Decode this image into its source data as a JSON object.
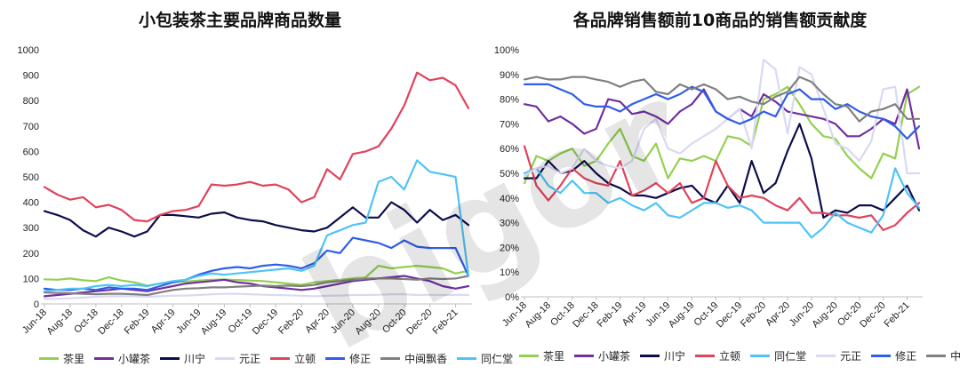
{
  "colors": {
    "茶里": "#92d050",
    "小罐茶": "#7030a0",
    "川宁": "#0d0d4d",
    "元正": "#d9d9f3",
    "立顿": "#e0435c",
    "修正": "#2f5de8",
    "中闽飘香": "#808080",
    "同仁堂": "#4fc3f7"
  },
  "watermark_text": "bigone",
  "chart_data": [
    {
      "type": "line",
      "title": "小包装茶主要品牌商品数量",
      "xlabel": "",
      "ylabel": "",
      "ylim": [
        0,
        1000
      ],
      "yticks": [
        "0",
        "100",
        "200",
        "300",
        "400",
        "500",
        "600",
        "700",
        "800",
        "900",
        "1000"
      ],
      "x_tick_labels": [
        "Jun-18",
        "Aug-18",
        "Oct-18",
        "Dec-18",
        "Feb-19",
        "Apr-19",
        "Jun-19",
        "Aug-19",
        "Oct-19",
        "Dec-19",
        "Feb-20",
        "Apr-20",
        "Jun-20",
        "Aug-20",
        "Oct-20",
        "Dec-20",
        "Feb-21"
      ],
      "x": [
        "Jun-18",
        "Jul-18",
        "Aug-18",
        "Sep-18",
        "Oct-18",
        "Nov-18",
        "Dec-18",
        "Jan-19",
        "Feb-19",
        "Mar-19",
        "Apr-19",
        "May-19",
        "Jun-19",
        "Jul-19",
        "Aug-19",
        "Sep-19",
        "Oct-19",
        "Nov-19",
        "Dec-19",
        "Jan-20",
        "Feb-20",
        "Mar-20",
        "Apr-20",
        "May-20",
        "Jun-20",
        "Jul-20",
        "Aug-20",
        "Sep-20",
        "Oct-20",
        "Nov-20",
        "Dec-20",
        "Jan-21",
        "Feb-21",
        "Mar-21"
      ],
      "legend": [
        "茶里",
        "小罐茶",
        "川宁",
        "元正",
        "立顿",
        "修正",
        "中闽飘香",
        "同仁堂"
      ],
      "series": [
        {
          "name": "茶里",
          "values": [
            97,
            95,
            100,
            93,
            90,
            105,
            92,
            85,
            72,
            80,
            85,
            88,
            92,
            95,
            96,
            94,
            92,
            90,
            85,
            80,
            75,
            85,
            90,
            95,
            100,
            105,
            150,
            140,
            145,
            150,
            145,
            140,
            120,
            130
          ]
        },
        {
          "name": "小罐茶",
          "values": [
            30,
            35,
            40,
            45,
            50,
            55,
            60,
            55,
            50,
            60,
            70,
            80,
            85,
            90,
            95,
            85,
            80,
            70,
            65,
            60,
            55,
            60,
            70,
            80,
            90,
            95,
            100,
            105,
            110,
            100,
            90,
            70,
            60,
            70
          ]
        },
        {
          "name": "川宁",
          "values": [
            365,
            350,
            330,
            290,
            265,
            300,
            285,
            265,
            285,
            350,
            350,
            345,
            340,
            355,
            360,
            340,
            330,
            325,
            310,
            300,
            290,
            285,
            300,
            340,
            380,
            340,
            340,
            400,
            370,
            320,
            370,
            330,
            350,
            310
          ]
        },
        {
          "name": "元正",
          "values": [
            20,
            20,
            22,
            25,
            28,
            30,
            30,
            30,
            28,
            30,
            32,
            33,
            35,
            38,
            40,
            40,
            38,
            36,
            35,
            34,
            32,
            30,
            32,
            33,
            35,
            35,
            36,
            38,
            38,
            35,
            36,
            35,
            36,
            35
          ]
        },
        {
          "name": "立顿",
          "values": [
            460,
            430,
            410,
            420,
            380,
            390,
            370,
            330,
            325,
            350,
            365,
            370,
            385,
            470,
            465,
            470,
            480,
            465,
            470,
            450,
            400,
            420,
            530,
            490,
            590,
            600,
            620,
            690,
            780,
            910,
            880,
            890,
            860,
            770
          ]
        },
        {
          "name": "修正",
          "values": [
            60,
            55,
            55,
            60,
            55,
            65,
            60,
            60,
            55,
            70,
            85,
            95,
            115,
            130,
            140,
            145,
            140,
            150,
            155,
            150,
            140,
            160,
            210,
            200,
            260,
            250,
            240,
            220,
            250,
            225,
            220,
            220,
            220,
            110
          ]
        },
        {
          "name": "中闽飘香",
          "values": [
            45,
            43,
            42,
            40,
            38,
            40,
            40,
            38,
            35,
            45,
            55,
            60,
            62,
            65,
            65,
            68,
            70,
            72,
            70,
            72,
            70,
            75,
            85,
            90,
            95,
            100,
            100,
            100,
            98,
            95,
            100,
            98,
            100,
            110
          ]
        },
        {
          "name": "同仁堂",
          "values": [
            50,
            55,
            60,
            60,
            70,
            75,
            70,
            75,
            70,
            80,
            90,
            95,
            110,
            120,
            115,
            120,
            125,
            130,
            135,
            140,
            130,
            150,
            270,
            290,
            310,
            320,
            480,
            500,
            450,
            565,
            520,
            510,
            500,
            110
          ]
        }
      ]
    },
    {
      "type": "line",
      "title": "各品牌销售额前10商品的销售额贡献度",
      "xlabel": "",
      "ylabel": "",
      "ylim": [
        0,
        100
      ],
      "yticks": [
        "0%",
        "10%",
        "20%",
        "30%",
        "40%",
        "50%",
        "60%",
        "70%",
        "80%",
        "90%",
        "100%"
      ],
      "x_tick_labels": [
        "Jun-18",
        "Aug-18",
        "Oct-18",
        "Dec-18",
        "Feb-19",
        "Apr-19",
        "Jun-19",
        "Aug-19",
        "Oct-19",
        "Dec-19",
        "Feb-20",
        "Apr-20",
        "Jun-20",
        "Aug-20",
        "Oct-20",
        "Dec-20",
        "Feb-21"
      ],
      "x": [
        "Jun-18",
        "Jul-18",
        "Aug-18",
        "Sep-18",
        "Oct-18",
        "Nov-18",
        "Dec-18",
        "Jan-19",
        "Feb-19",
        "Mar-19",
        "Apr-19",
        "May-19",
        "Jun-19",
        "Jul-19",
        "Aug-19",
        "Sep-19",
        "Oct-19",
        "Nov-19",
        "Dec-19",
        "Jan-20",
        "Feb-20",
        "Mar-20",
        "Apr-20",
        "May-20",
        "Jun-20",
        "Jul-20",
        "Aug-20",
        "Sep-20",
        "Oct-20",
        "Nov-20",
        "Dec-20",
        "Jan-21",
        "Feb-21",
        "Mar-21"
      ],
      "legend": [
        "茶里",
        "小罐茶",
        "川宁",
        "立顿",
        "同仁堂",
        "元正",
        "修正",
        "中闽飘香"
      ],
      "series": [
        {
          "name": "茶里",
          "values": [
            46,
            57,
            55,
            58,
            60,
            53,
            55,
            62,
            68,
            57,
            55,
            62,
            48,
            56,
            55,
            57,
            55,
            65,
            64,
            61,
            80,
            82,
            85,
            78,
            70,
            65,
            64,
            57,
            52,
            48,
            58,
            56,
            82,
            85
          ]
        },
        {
          "name": "小罐茶",
          "values": [
            78,
            77,
            71,
            73,
            70,
            66,
            68,
            80,
            79,
            74,
            75,
            73,
            70,
            75,
            78,
            84,
            75,
            72,
            76,
            73,
            82,
            79,
            75,
            74,
            73,
            72,
            70,
            65,
            65,
            68,
            72,
            70,
            84,
            60
          ]
        },
        {
          "name": "川宁",
          "values": [
            48,
            48,
            55,
            50,
            51,
            55,
            50,
            46,
            44,
            41,
            41,
            40,
            42,
            44,
            45,
            40,
            38,
            45,
            38,
            55,
            42,
            46,
            59,
            70,
            56,
            32,
            35,
            34,
            37,
            37,
            35,
            40,
            45,
            35
          ]
        },
        {
          "name": "立顿",
          "values": [
            61,
            45,
            39,
            45,
            52,
            48,
            46,
            45,
            55,
            41,
            43,
            46,
            42,
            46,
            38,
            40,
            55,
            45,
            40,
            41,
            40,
            37,
            35,
            40,
            34,
            34,
            33,
            33,
            32,
            33,
            27,
            29,
            34,
            38
          ]
        },
        {
          "name": "同仁堂",
          "values": [
            50,
            52,
            45,
            42,
            47,
            42,
            42,
            38,
            40,
            37,
            35,
            38,
            33,
            32,
            35,
            38,
            38,
            36,
            37,
            35,
            30,
            30,
            30,
            30,
            24,
            28,
            34,
            30,
            28,
            26,
            33,
            52,
            42,
            36
          ]
        },
        {
          "name": "元正",
          "values": [
            49,
            52,
            53,
            50,
            52,
            60,
            55,
            53,
            52,
            55,
            68,
            72,
            60,
            58,
            62,
            65,
            68,
            72,
            76,
            60,
            96,
            92,
            66,
            93,
            90,
            76,
            62,
            60,
            55,
            63,
            84,
            85,
            50,
            50
          ]
        },
        {
          "name": "修正",
          "values": [
            86,
            86,
            86,
            84,
            82,
            78,
            77,
            77,
            75,
            78,
            80,
            82,
            80,
            82,
            85,
            83,
            75,
            72,
            70,
            72,
            75,
            73,
            82,
            84,
            80,
            80,
            76,
            78,
            75,
            73,
            72,
            69,
            64,
            69
          ]
        },
        {
          "name": "中闽飘香",
          "values": [
            88,
            89,
            88,
            88,
            89,
            89,
            88,
            87,
            85,
            87,
            88,
            83,
            82,
            86,
            84,
            86,
            84,
            80,
            81,
            79,
            78,
            81,
            83,
            89,
            87,
            82,
            78,
            77,
            71,
            75,
            76,
            78,
            72,
            72
          ]
        }
      ]
    }
  ]
}
